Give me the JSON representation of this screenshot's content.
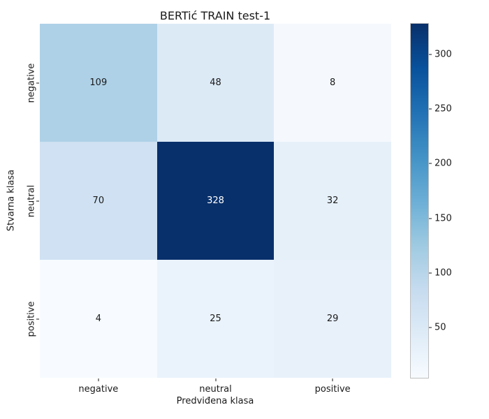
{
  "chart_data": {
    "type": "heatmap",
    "title": "BERTić TRAIN test-1",
    "xlabel": "Predviđena klasa",
    "ylabel": "Stvarna klasa",
    "x_categories": [
      "negative",
      "neutral",
      "positive"
    ],
    "y_categories": [
      "negative",
      "neutral",
      "positive"
    ],
    "values": [
      [
        109,
        48,
        8
      ],
      [
        70,
        328,
        32
      ],
      [
        4,
        25,
        29
      ]
    ],
    "vmin": 4,
    "vmax": 328,
    "colormap": "Blues",
    "colorbar_ticks": [
      50,
      100,
      150,
      200,
      250,
      300
    ],
    "legend_position": "right-colorbar",
    "grid": false
  },
  "colors": {
    "background": "#ffffff",
    "text": "#1a1a1a",
    "annotation_light": "#ffffff",
    "annotation_dark": "#1a1a1a",
    "colormap_low": "#f7fbff",
    "colormap_high": "#08306b"
  }
}
